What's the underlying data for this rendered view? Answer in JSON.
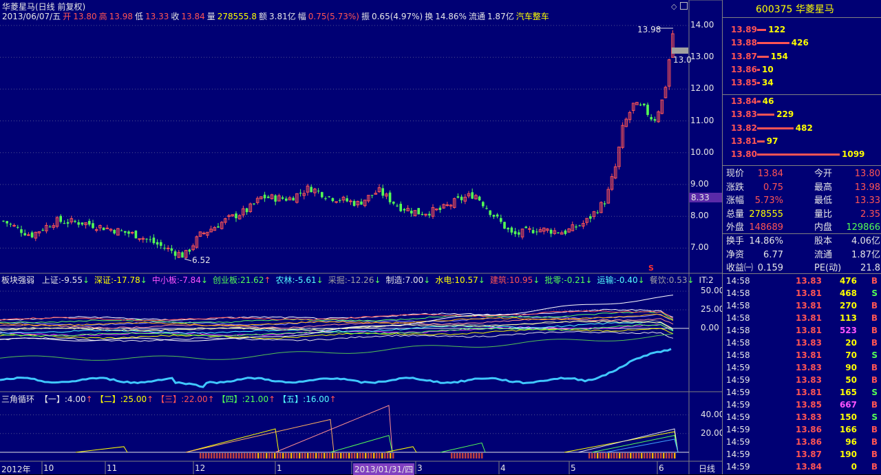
{
  "header": {
    "stock_title": "华菱星马(日线 前复权)",
    "date": "2013/06/07/五",
    "open_label": "开",
    "open": "13.80",
    "high_label": "高",
    "high": "13.98",
    "low_label": "低",
    "low": "13.33",
    "close_label": "收",
    "close": "13.84",
    "volume_label": "量",
    "volume": "278555.8",
    "amount_label": "额",
    "amount": "3.81亿",
    "change_label": "幅",
    "change": "0.75(5.73%)",
    "amp_label": "振",
    "amp": "0.65(4.97%)",
    "turnover_label": "换",
    "turnover": "14.86%",
    "float_label": "流通",
    "float": "1.87亿",
    "sector": "汽车整车"
  },
  "price_axis": {
    "labels": [
      "14.00",
      "13.00",
      "12.00",
      "11.00",
      "10.00",
      "9.00",
      "8.00",
      "7.00"
    ],
    "current_tag": "8.33",
    "high_note": "13.98",
    "low_note": "6.52",
    "right_note": "13.0",
    "signal_mark": "S"
  },
  "colors": {
    "background": "#000074",
    "up": "#ff5454",
    "down": "#54ff54",
    "yellow": "#ffff00",
    "cyan": "#54ffff",
    "grid": "#808080"
  },
  "sector_panel": {
    "title": "板块强弱",
    "items": [
      {
        "name": "上证",
        "value": "-9.55",
        "arrow": "↓",
        "color": "#e6e6e6"
      },
      {
        "name": "深证",
        "value": "-17.78",
        "arrow": "↓",
        "color": "#ffff00"
      },
      {
        "name": "中小板",
        "value": "-7.84",
        "arrow": "↓",
        "color": "#ff54ff"
      },
      {
        "name": "创业板",
        "value": "21.62",
        "arrow": "↑",
        "color": "#54ff54"
      },
      {
        "name": "农林",
        "value": "-5.61",
        "arrow": "↓",
        "color": "#54ffff"
      },
      {
        "name": "采掘",
        "value": "-12.26",
        "arrow": "↓",
        "color": "#a0a0a0"
      },
      {
        "name": "制造",
        "value": "7.00",
        "arrow": "↓",
        "color": "#e6e6e6"
      },
      {
        "name": "水电",
        "value": "10.57",
        "arrow": "↓",
        "color": "#ffff00"
      },
      {
        "name": "建筑",
        "value": "10.95",
        "arrow": "↓",
        "color": "#ff5454"
      },
      {
        "name": "批零",
        "value": "-0.21",
        "arrow": "↓",
        "color": "#54ff54"
      },
      {
        "name": "运输",
        "value": "-0.40",
        "arrow": "↓",
        "color": "#54ffff"
      },
      {
        "name": "餐饮",
        "value": "0.53",
        "arrow": "↓",
        "color": "#a0a0a0"
      },
      {
        "name": "IT",
        "value": "2",
        "arrow": "",
        "color": "#e6e6e6"
      }
    ],
    "axis": [
      "50.00",
      "25.00",
      "0.00"
    ]
  },
  "triangle_panel": {
    "title": "三角循环",
    "items": [
      {
        "name": "【一】",
        "value": "4.00",
        "arrow": "↑",
        "color": "#e6e6e6"
      },
      {
        "name": "【二】",
        "value": "25.00",
        "arrow": "↑",
        "color": "#ffff00"
      },
      {
        "name": "【三】",
        "value": "22.00",
        "arrow": "↑",
        "color": "#ff5454"
      },
      {
        "name": "【四】",
        "value": "21.00",
        "arrow": "↑",
        "color": "#54ff54"
      },
      {
        "name": "【五】",
        "value": "16.00",
        "arrow": "↑",
        "color": "#54ffff"
      }
    ],
    "axis": [
      "40.00",
      "20.00"
    ]
  },
  "time_axis": {
    "labels": [
      "2012年",
      "10",
      "11",
      "12",
      "1",
      "2013/01/31/四",
      "3",
      "4",
      "5",
      "6"
    ],
    "period": "日线"
  },
  "side": {
    "code_name": "600375 华菱星马",
    "asks": [
      {
        "price": "13.89",
        "vol": "122",
        "len": 0.11
      },
      {
        "price": "13.88",
        "vol": "426",
        "len": 0.39
      },
      {
        "price": "13.87",
        "vol": "154",
        "len": 0.14
      },
      {
        "price": "13.86",
        "vol": "10",
        "len": 0.01
      },
      {
        "price": "13.85",
        "vol": "34",
        "len": 0.03
      }
    ],
    "bids": [
      {
        "price": "13.84",
        "vol": "46",
        "len": 0.04
      },
      {
        "price": "13.83",
        "vol": "229",
        "len": 0.21
      },
      {
        "price": "13.82",
        "vol": "482",
        "len": 0.44
      },
      {
        "price": "13.81",
        "vol": "97",
        "len": 0.09
      },
      {
        "price": "13.80",
        "vol": "1099",
        "len": 1.0
      }
    ],
    "stats": [
      {
        "l1": "现价",
        "v1": "13.84",
        "c1": "#ff5454",
        "l2": "今开",
        "v2": "13.80",
        "c2": "#ff5454"
      },
      {
        "l1": "涨跌",
        "v1": "0.75",
        "c1": "#ff5454",
        "l2": "最高",
        "v2": "13.98",
        "c2": "#ff5454"
      },
      {
        "l1": "涨幅",
        "v1": "5.73%",
        "c1": "#ff5454",
        "l2": "最低",
        "v2": "13.33",
        "c2": "#ff5454"
      },
      {
        "l1": "总量",
        "v1": "278555",
        "c1": "#ffff00",
        "l2": "量比",
        "v2": "2.35",
        "c2": "#ff5454"
      },
      {
        "l1": "外盘",
        "v1": "148689",
        "c1": "#ff5454",
        "l2": "内盘",
        "v2": "129866",
        "c2": "#54ff54"
      }
    ],
    "stats2": [
      {
        "l1": "换手",
        "v1": "14.86%",
        "c1": "#e6e6e6",
        "l2": "股本",
        "v2": "4.06亿",
        "c2": "#e6e6e6"
      },
      {
        "l1": "净资",
        "v1": "6.77",
        "c1": "#e6e6e6",
        "l2": "流通",
        "v2": "1.87亿",
        "c2": "#e6e6e6"
      },
      {
        "l1": "收益㈠",
        "v1": "0.159",
        "c1": "#e6e6e6",
        "l2": "PE(动)",
        "v2": "21.8",
        "c2": "#e6e6e6"
      }
    ],
    "ticks": [
      {
        "time": "14:58",
        "price": "13.83",
        "pc": "#ff5454",
        "vol": "476",
        "vc": "#ffff00",
        "dir": "B",
        "dc": "#ff5454"
      },
      {
        "time": "14:58",
        "price": "13.81",
        "pc": "#ff5454",
        "vol": "468",
        "vc": "#ffff00",
        "dir": "S",
        "dc": "#54ff54"
      },
      {
        "time": "14:58",
        "price": "13.81",
        "pc": "#ff5454",
        "vol": "270",
        "vc": "#ffff00",
        "dir": "B",
        "dc": "#ff5454"
      },
      {
        "time": "14:58",
        "price": "13.81",
        "pc": "#ff5454",
        "vol": "113",
        "vc": "#ffff00",
        "dir": "B",
        "dc": "#ff5454"
      },
      {
        "time": "14:58",
        "price": "13.81",
        "pc": "#ff5454",
        "vol": "523",
        "vc": "#ff54ff",
        "dir": "B",
        "dc": "#ff5454"
      },
      {
        "time": "14:58",
        "price": "13.83",
        "pc": "#ff5454",
        "vol": "20",
        "vc": "#ffff00",
        "dir": "B",
        "dc": "#ff5454"
      },
      {
        "time": "14:58",
        "price": "13.81",
        "pc": "#ff5454",
        "vol": "70",
        "vc": "#ffff00",
        "dir": "S",
        "dc": "#54ff54"
      },
      {
        "time": "14:59",
        "price": "13.83",
        "pc": "#ff5454",
        "vol": "90",
        "vc": "#ffff00",
        "dir": "B",
        "dc": "#ff5454"
      },
      {
        "time": "14:59",
        "price": "13.83",
        "pc": "#ff5454",
        "vol": "50",
        "vc": "#ffff00",
        "dir": "B",
        "dc": "#ff5454"
      },
      {
        "time": "14:59",
        "price": "13.81",
        "pc": "#ff5454",
        "vol": "165",
        "vc": "#ffff00",
        "dir": "S",
        "dc": "#54ff54"
      },
      {
        "time": "14:59",
        "price": "13.85",
        "pc": "#ff5454",
        "vol": "667",
        "vc": "#ff54ff",
        "dir": "B",
        "dc": "#ff5454"
      },
      {
        "time": "14:59",
        "price": "13.83",
        "pc": "#ff5454",
        "vol": "150",
        "vc": "#ffff00",
        "dir": "S",
        "dc": "#54ff54"
      },
      {
        "time": "14:59",
        "price": "13.86",
        "pc": "#ff5454",
        "vol": "166",
        "vc": "#ffff00",
        "dir": "B",
        "dc": "#ff5454"
      },
      {
        "time": "14:59",
        "price": "13.86",
        "pc": "#ff5454",
        "vol": "96",
        "vc": "#ffff00",
        "dir": "B",
        "dc": "#ff5454"
      },
      {
        "time": "14:59",
        "price": "13.87",
        "pc": "#ff5454",
        "vol": "190",
        "vc": "#ffff00",
        "dir": "B",
        "dc": "#ff5454"
      },
      {
        "time": "14:59",
        "price": "13.84",
        "pc": "#ff5454",
        "vol": "0",
        "vc": "#ffff00",
        "dir": "B",
        "dc": "#ff5454"
      }
    ]
  }
}
